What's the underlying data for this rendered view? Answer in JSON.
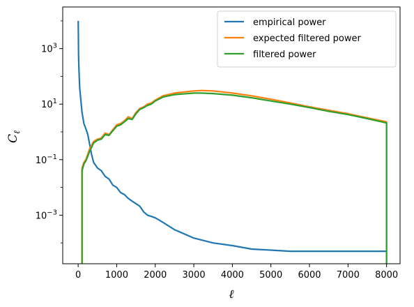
{
  "chart_data": {
    "type": "line",
    "title": "",
    "xlabel": "ℓ",
    "ylabel_main": "C",
    "ylabel_sub": "ℓ",
    "xlim": [
      -400,
      8350
    ],
    "ylim_log10": [
      -4.75,
      4.5
    ],
    "y_scale": "log",
    "grid": false,
    "legend_position": "top-right",
    "x_ticks": [
      {
        "value": 0,
        "label": "0"
      },
      {
        "value": 1000,
        "label": "1000"
      },
      {
        "value": 2000,
        "label": "2000"
      },
      {
        "value": 3000,
        "label": "3000"
      },
      {
        "value": 4000,
        "label": "4000"
      },
      {
        "value": 5000,
        "label": "5000"
      },
      {
        "value": 6000,
        "label": "6000"
      },
      {
        "value": 7000,
        "label": "7000"
      },
      {
        "value": 8000,
        "label": "8000"
      }
    ],
    "y_ticks": [
      {
        "exp": 3,
        "label": "10",
        "sup": "3"
      },
      {
        "exp": 1,
        "label": "10",
        "sup": "1"
      },
      {
        "exp": -1,
        "label": "10",
        "sup": "−1"
      },
      {
        "exp": -3,
        "label": "10",
        "sup": "−3"
      }
    ],
    "series": [
      {
        "name": "empirical power",
        "color": "#1f77b4",
        "x": [
          2,
          5,
          10,
          20,
          40,
          60,
          100,
          150,
          200,
          250,
          300,
          350,
          400,
          500,
          600,
          700,
          800,
          900,
          1000,
          1100,
          1200,
          1300,
          1400,
          1500,
          1600,
          1700,
          1800,
          1900,
          2000,
          2200,
          2500,
          3000,
          3500,
          4000,
          4500,
          5000,
          5500,
          6000,
          6500,
          7000,
          7500,
          8000
        ],
        "y": [
          10000,
          4000,
          600,
          200,
          40,
          20,
          5,
          2,
          1.3,
          0.8,
          0.35,
          0.15,
          0.08,
          0.05,
          0.04,
          0.025,
          0.02,
          0.012,
          0.01,
          0.0065,
          0.0055,
          0.004,
          0.0032,
          0.0026,
          0.0021,
          0.0013,
          0.001,
          0.0009,
          0.0008,
          0.00055,
          0.0003,
          0.00015,
          0.0001,
          8e-05,
          6e-05,
          5.5e-05,
          5e-05,
          5e-05,
          5e-05,
          5e-05,
          5e-05,
          5e-05
        ]
      },
      {
        "name": "expected filtered power",
        "color": "#ff7f0e",
        "x": [
          100,
          150,
          200,
          300,
          400,
          500,
          600,
          700,
          800,
          900,
          1000,
          1100,
          1200,
          1300,
          1400,
          1500,
          1600,
          1700,
          1800,
          1900,
          2000,
          2200,
          2500,
          3000,
          3200,
          3500,
          4000,
          4500,
          5000,
          5500,
          6000,
          6500,
          7000,
          7500,
          8000
        ],
        "y": [
          0.05,
          0.08,
          0.1,
          0.25,
          0.45,
          0.55,
          0.6,
          0.9,
          0.8,
          1.2,
          1.8,
          2.0,
          2.5,
          3.5,
          3.0,
          5.0,
          7.0,
          8.0,
          10,
          11,
          14,
          20,
          25,
          30,
          31,
          30,
          25,
          20,
          15,
          11,
          8,
          6,
          4.5,
          3.2,
          2.3
        ]
      },
      {
        "name": "filtered power",
        "color": "#2ca02c",
        "x": [
          100,
          150,
          200,
          300,
          400,
          500,
          600,
          700,
          800,
          900,
          1000,
          1100,
          1200,
          1300,
          1400,
          1500,
          1600,
          1700,
          1800,
          1900,
          2000,
          2200,
          2500,
          3000,
          3200,
          3500,
          4000,
          4500,
          5000,
          5500,
          6000,
          6500,
          7000,
          7500,
          8000
        ],
        "y": [
          0.04,
          0.07,
          0.09,
          0.2,
          0.4,
          0.5,
          0.55,
          0.8,
          0.75,
          1.1,
          1.6,
          1.8,
          2.3,
          3.0,
          2.8,
          4.5,
          6.5,
          7.5,
          9,
          10,
          13,
          18,
          22,
          25,
          25,
          24,
          21,
          17,
          13,
          10,
          7.5,
          5.5,
          4.2,
          3.0,
          2.1
        ]
      }
    ]
  }
}
